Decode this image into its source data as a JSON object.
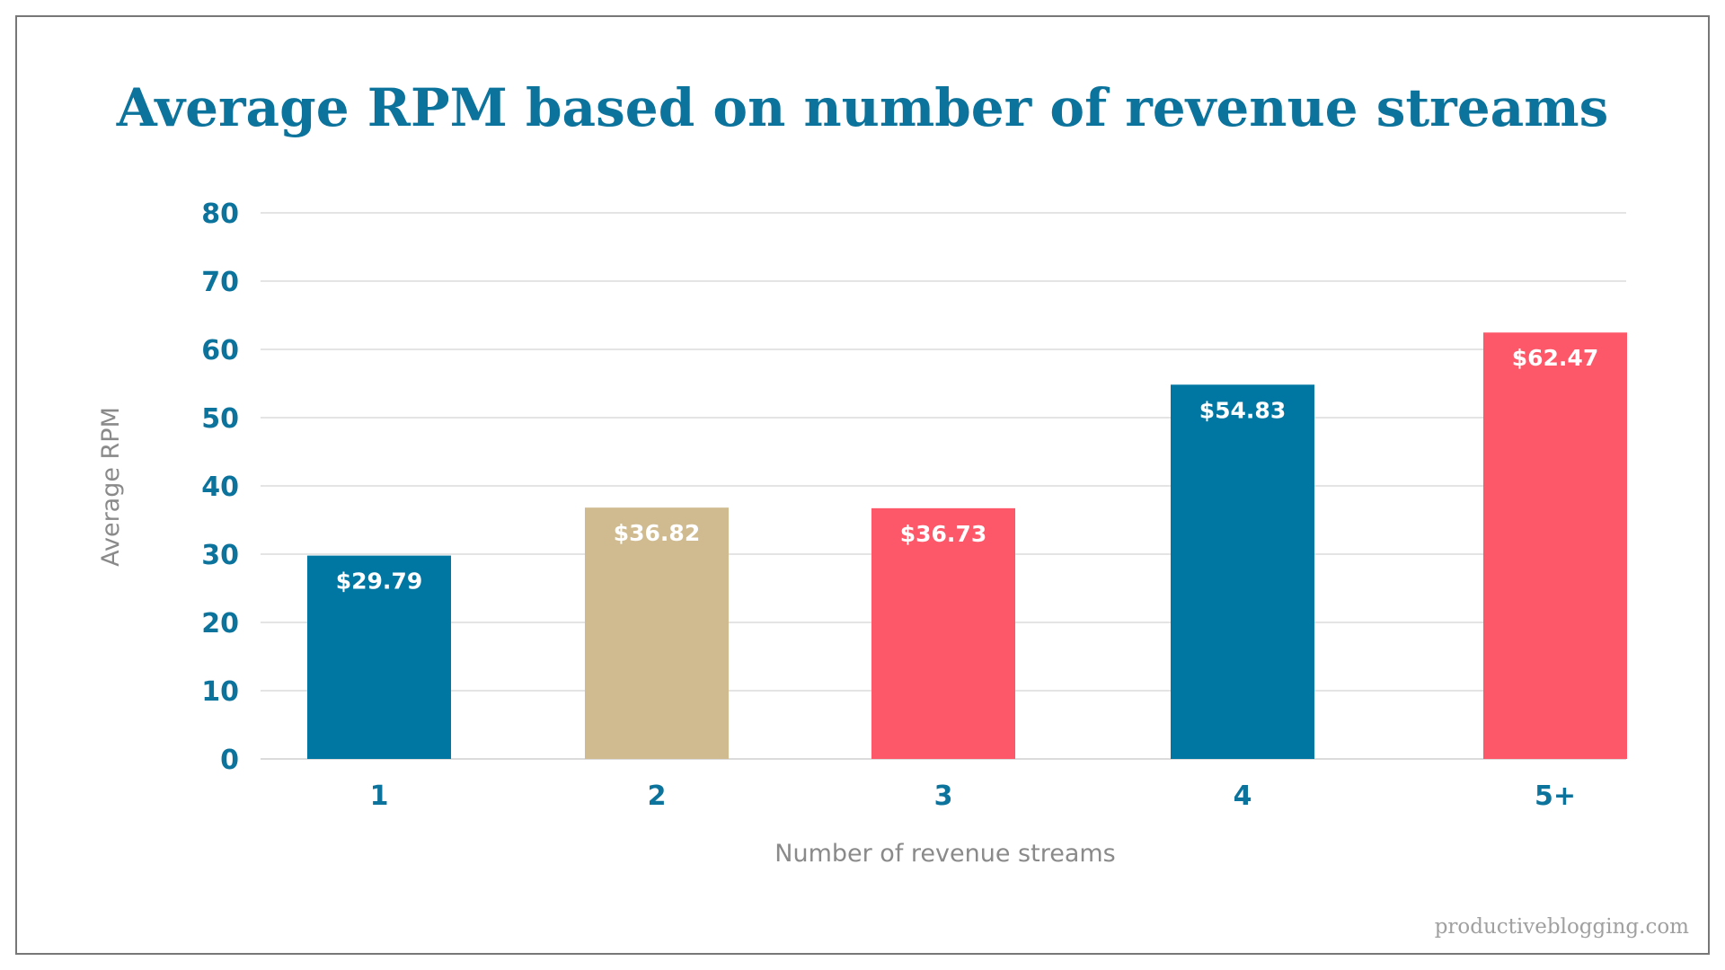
{
  "chart_data": {
    "type": "bar",
    "title": "Average RPM based on number of revenue streams",
    "xlabel": "Number of revenue streams",
    "ylabel": "Average RPM",
    "categories": [
      "1",
      "2",
      "3",
      "4",
      "5+"
    ],
    "values": [
      29.79,
      36.82,
      36.73,
      54.83,
      62.47
    ],
    "data_labels": [
      "$29.79",
      "$36.82",
      "$36.73",
      "$54.83",
      "$62.47"
    ],
    "bar_colors": [
      "#0077a3",
      "#cfbb8f",
      "#fd5869",
      "#0077a3",
      "#fd5869"
    ],
    "ylim": [
      0,
      80
    ],
    "yticks": [
      0,
      10,
      20,
      30,
      40,
      50,
      60,
      70,
      80
    ],
    "grid": true,
    "legend": "none"
  },
  "footer": {
    "watermark": "productiveblogging.com"
  },
  "colors": {
    "title": "#0c739c",
    "tick": "#0c739c",
    "axis_label": "#8a8a8a",
    "grid": "#dcdcdc",
    "frame": "#777777"
  }
}
